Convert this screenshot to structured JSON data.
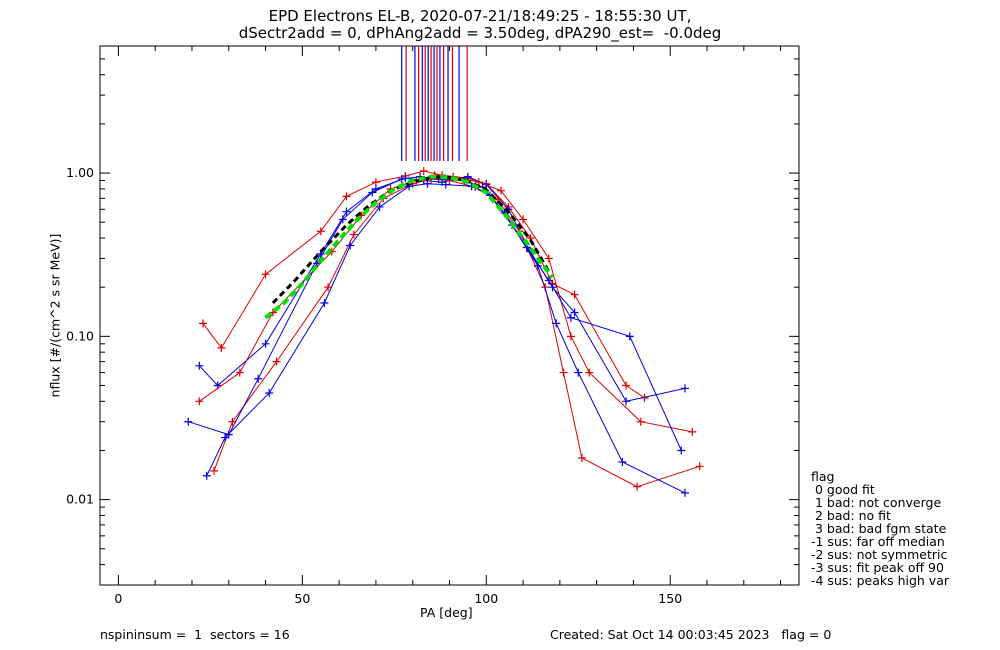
{
  "chart_data": {
    "type": "line",
    "title": "EPD Electrons EL-B, 2020-07-21/18:49:25 - 18:55:30 UT,",
    "subtitle": "dSectr2add = 0, dPhAng2add = 3.50deg, dPA290_est=  -0.0deg",
    "xlabel": "PA [deg]",
    "ylabel": "nflux [#/(cm^2 s sr MeV)]",
    "xlim": [
      -5,
      185
    ],
    "ylim": [
      0.003,
      6.0
    ],
    "yscale": "log",
    "x_ticks": [
      0,
      50,
      100,
      150
    ],
    "x_tick_labels": [
      "0",
      "50",
      "100",
      "150"
    ],
    "y_ticks": [
      0.01,
      0.1,
      1.0
    ],
    "y_tick_labels": [
      "0.01",
      "0.10",
      "1.00"
    ],
    "colors": {
      "red": "#e00000",
      "blue": "#0000e0",
      "green": "#00e000",
      "black": "#000000"
    },
    "sample_series": [
      {
        "color": "red",
        "x": [
          23,
          28,
          40,
          55,
          62,
          70,
          78,
          83,
          88,
          95,
          100,
          106,
          112,
          118,
          124,
          138,
          143
        ],
        "y": [
          0.12,
          0.085,
          0.24,
          0.44,
          0.72,
          0.88,
          0.96,
          1.03,
          0.97,
          0.93,
          0.86,
          0.62,
          0.4,
          0.21,
          0.18,
          0.05,
          0.042
        ]
      },
      {
        "color": "blue",
        "x": [
          22,
          27,
          40,
          55,
          62,
          70,
          78,
          83,
          88,
          95,
          100,
          106,
          112,
          118,
          124,
          138,
          154
        ],
        "y": [
          0.066,
          0.05,
          0.09,
          0.32,
          0.58,
          0.8,
          0.93,
          0.9,
          0.88,
          0.95,
          0.85,
          0.6,
          0.33,
          0.2,
          0.14,
          0.04,
          0.048
        ]
      },
      {
        "color": "red",
        "x": [
          26,
          31,
          43,
          57,
          64,
          72,
          80,
          85,
          90,
          97,
          103,
          109,
          116,
          121,
          126,
          141,
          158
        ],
        "y": [
          0.015,
          0.03,
          0.07,
          0.2,
          0.42,
          0.7,
          0.86,
          0.92,
          0.9,
          0.82,
          0.69,
          0.44,
          0.2,
          0.06,
          0.018,
          0.012,
          0.016
        ]
      },
      {
        "color": "blue",
        "x": [
          24,
          29,
          41,
          56,
          63,
          71,
          79,
          84,
          89,
          96,
          101,
          107,
          114,
          119,
          125,
          137,
          154
        ],
        "y": [
          0.014,
          0.024,
          0.045,
          0.16,
          0.36,
          0.62,
          0.83,
          0.86,
          0.85,
          0.83,
          0.73,
          0.48,
          0.27,
          0.12,
          0.06,
          0.017,
          0.011
        ]
      },
      {
        "color": "red",
        "x": [
          22,
          33,
          42,
          58,
          66,
          74,
          81,
          86,
          91,
          98,
          104,
          110,
          117,
          123,
          128,
          142,
          156
        ],
        "y": [
          0.04,
          0.06,
          0.14,
          0.33,
          0.55,
          0.8,
          0.9,
          0.97,
          0.95,
          0.88,
          0.78,
          0.52,
          0.3,
          0.1,
          0.06,
          0.03,
          0.026
        ]
      },
      {
        "color": "blue",
        "x": [
          19,
          30,
          38,
          54,
          61,
          69,
          77,
          82,
          87,
          94,
          99,
          105,
          111,
          117,
          123,
          139,
          153
        ],
        "y": [
          0.03,
          0.025,
          0.055,
          0.28,
          0.52,
          0.76,
          0.92,
          0.95,
          0.92,
          0.9,
          0.82,
          0.57,
          0.35,
          0.22,
          0.13,
          0.1,
          0.02
        ]
      }
    ],
    "median_fit": {
      "color": "green",
      "x": [
        40,
        45,
        50,
        55,
        60,
        65,
        70,
        75,
        80,
        85,
        90,
        95,
        100,
        105,
        110,
        115,
        118
      ],
      "y": [
        0.13,
        0.16,
        0.21,
        0.29,
        0.39,
        0.52,
        0.66,
        0.8,
        0.9,
        0.95,
        0.94,
        0.88,
        0.76,
        0.56,
        0.4,
        0.28,
        0.23
      ]
    },
    "median_data": {
      "color": "black",
      "x": [
        42,
        48,
        55,
        62,
        68,
        74,
        80,
        85,
        90,
        95,
        100,
        106,
        112,
        117
      ],
      "y": [
        0.16,
        0.22,
        0.33,
        0.48,
        0.63,
        0.78,
        0.88,
        0.94,
        0.94,
        0.89,
        0.79,
        0.58,
        0.39,
        0.25
      ]
    },
    "vertical_lines_x": [
      77.0,
      78.2,
      80.6,
      81.6,
      82.6,
      83.4,
      84.2,
      85.0,
      85.8,
      86.6,
      87.4,
      88.4,
      89.6,
      90.8,
      92.6,
      94.8
    ],
    "vertical_lines_colors": [
      "blue",
      "red",
      "blue",
      "red",
      "blue",
      "red",
      "blue",
      "red",
      "blue",
      "red",
      "blue",
      "red",
      "blue",
      "red",
      "blue",
      "red"
    ]
  },
  "legend": {
    "title": "flag",
    "items": [
      " 0 good fit",
      " 1 bad: not converge",
      " 2 bad: no fit",
      " 3 bad: bad fgm state",
      "-1 sus: far off median",
      "-2 sus: not symmetric",
      "-3 sus: fit peak off 90",
      "-4 sus: peaks high var"
    ]
  },
  "footer": {
    "left": "nspininsum =  1  sectors = 16",
    "right": "Created: Sat Oct 14 00:03:45 2023   flag = 0"
  }
}
